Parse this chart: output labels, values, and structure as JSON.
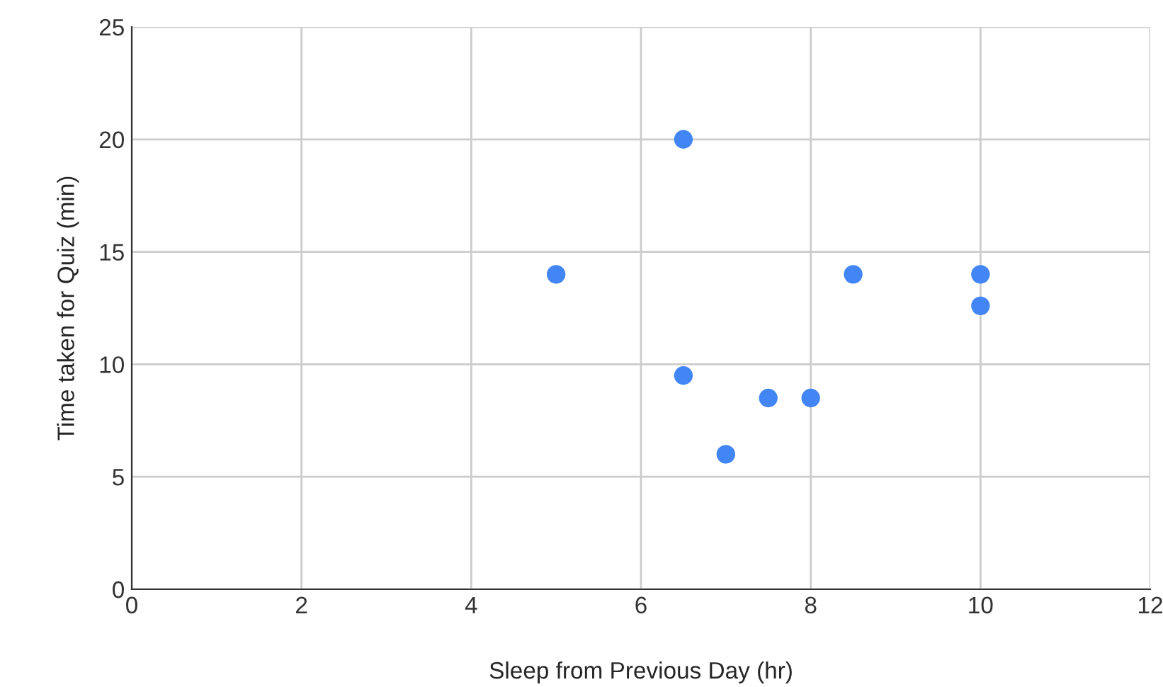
{
  "chart_data": {
    "type": "scatter",
    "xlabel": "Sleep from Previous Day (hr)",
    "ylabel": "Time taken for Quiz (min)",
    "x": [
      5,
      6.5,
      6.5,
      7,
      7.5,
      8,
      8.5,
      10,
      10
    ],
    "series": [
      {
        "color": "#4285f4",
        "values": [
          14,
          20,
          9.5,
          6,
          8.5,
          8.5,
          14,
          14,
          12.6
        ]
      }
    ],
    "xlim": [
      0,
      12
    ],
    "xticks": [
      0,
      2,
      4,
      6,
      8,
      10,
      12
    ],
    "ylim": [
      0,
      25
    ],
    "yticks": [
      0,
      5,
      10,
      15,
      20,
      25
    ],
    "grid": true,
    "marker": "circle"
  }
}
